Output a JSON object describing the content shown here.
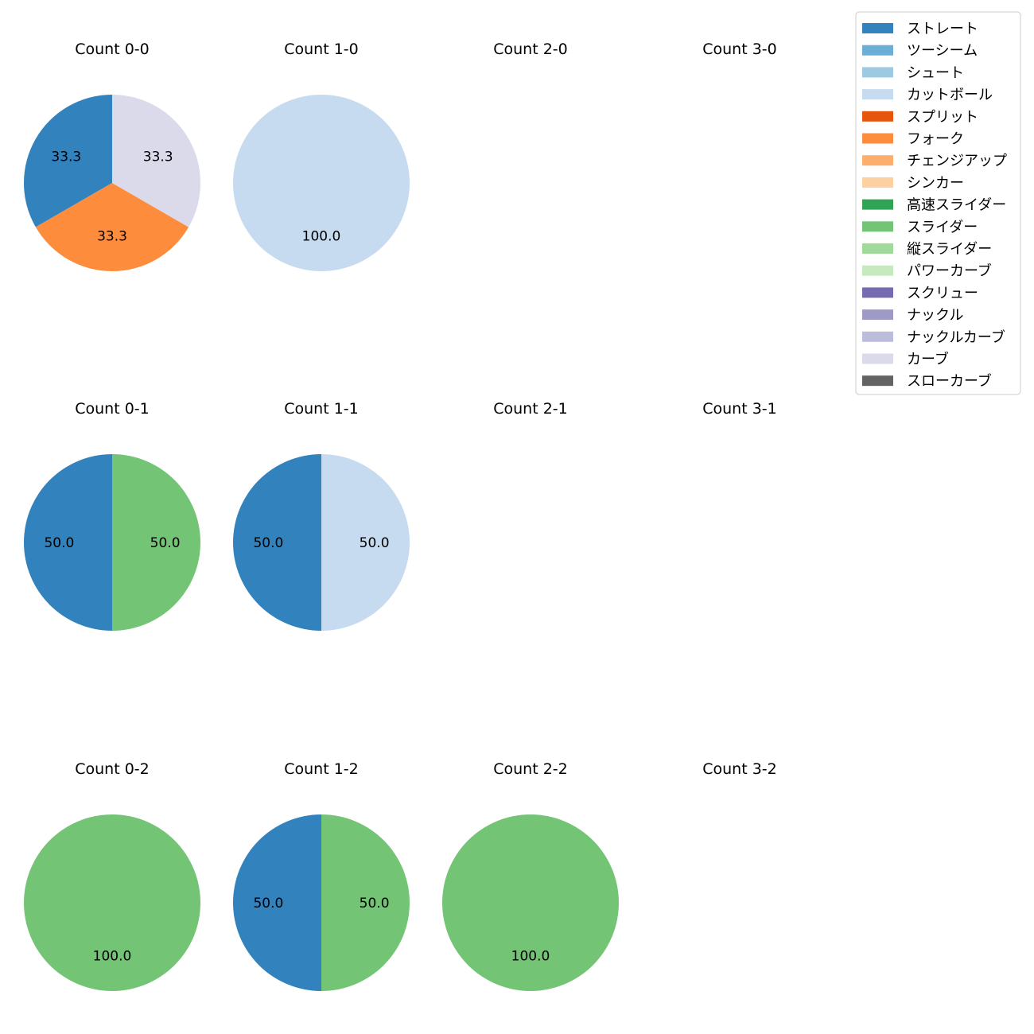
{
  "chart_data": {
    "type": "pie",
    "title": "",
    "legend": {
      "placement": "top-right",
      "entries": [
        {
          "name": "ストレート",
          "color": "#3182bd"
        },
        {
          "name": "ツーシーム",
          "color": "#6baed6"
        },
        {
          "name": "シュート",
          "color": "#9ecae1"
        },
        {
          "name": "カットボール",
          "color": "#c6dbef"
        },
        {
          "name": "スプリット",
          "color": "#e6550d"
        },
        {
          "name": "フォーク",
          "color": "#fd8d3c"
        },
        {
          "name": "チェンジアップ",
          "color": "#fdae6b"
        },
        {
          "name": "シンカー",
          "color": "#fdd0a2"
        },
        {
          "name": "高速スライダー",
          "color": "#31a354"
        },
        {
          "name": "スライダー",
          "color": "#74c476"
        },
        {
          "name": "縦スライダー",
          "color": "#a1d99b"
        },
        {
          "name": "パワーカーブ",
          "color": "#c7e9c0"
        },
        {
          "name": "スクリュー",
          "color": "#756bb1"
        },
        {
          "name": "ナックル",
          "color": "#9e9ac8"
        },
        {
          "name": "ナックルカーブ",
          "color": "#bcbddc"
        },
        {
          "name": "カーブ",
          "color": "#dadaeb"
        },
        {
          "name": "スローカーブ",
          "color": "#636363"
        }
      ]
    },
    "panels": [
      {
        "title": "Count 0-0",
        "row": 0,
        "col": 0,
        "slices": [
          {
            "pitch": "ストレート",
            "value": 33.3
          },
          {
            "pitch": "フォーク",
            "value": 33.3
          },
          {
            "pitch": "カーブ",
            "value": 33.3
          }
        ]
      },
      {
        "title": "Count 1-0",
        "row": 0,
        "col": 1,
        "slices": [
          {
            "pitch": "カットボール",
            "value": 100.0
          }
        ]
      },
      {
        "title": "Count 2-0",
        "row": 0,
        "col": 2,
        "slices": []
      },
      {
        "title": "Count 3-0",
        "row": 0,
        "col": 3,
        "slices": []
      },
      {
        "title": "Count 0-1",
        "row": 1,
        "col": 0,
        "slices": [
          {
            "pitch": "ストレート",
            "value": 50.0
          },
          {
            "pitch": "スライダー",
            "value": 50.0
          }
        ]
      },
      {
        "title": "Count 1-1",
        "row": 1,
        "col": 1,
        "slices": [
          {
            "pitch": "ストレート",
            "value": 50.0
          },
          {
            "pitch": "カットボール",
            "value": 50.0
          }
        ]
      },
      {
        "title": "Count 2-1",
        "row": 1,
        "col": 2,
        "slices": []
      },
      {
        "title": "Count 3-1",
        "row": 1,
        "col": 3,
        "slices": []
      },
      {
        "title": "Count 0-2",
        "row": 2,
        "col": 0,
        "slices": [
          {
            "pitch": "スライダー",
            "value": 100.0
          }
        ]
      },
      {
        "title": "Count 1-2",
        "row": 2,
        "col": 1,
        "slices": [
          {
            "pitch": "ストレート",
            "value": 50.0
          },
          {
            "pitch": "スライダー",
            "value": 50.0
          }
        ]
      },
      {
        "title": "Count 2-2",
        "row": 2,
        "col": 2,
        "slices": [
          {
            "pitch": "スライダー",
            "value": 100.0
          }
        ]
      },
      {
        "title": "Count 3-2",
        "row": 2,
        "col": 3,
        "slices": []
      }
    ]
  }
}
